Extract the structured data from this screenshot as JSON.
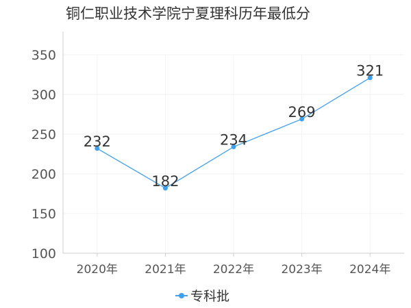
{
  "chart_data": {
    "type": "line",
    "title": "铜仁职业技术学院宁夏理科历年最低分",
    "categories": [
      "2020年",
      "2021年",
      "2022年",
      "2023年",
      "2024年"
    ],
    "series": [
      {
        "name": "专科批",
        "values": [
          232,
          182,
          234,
          269,
          321
        ],
        "color": "#3fa0ee"
      }
    ],
    "ylim": [
      100,
      350
    ],
    "yticks": [
      100,
      150,
      200,
      250,
      300,
      350
    ],
    "xlabel": "",
    "ylabel": "",
    "grid": true,
    "legend": "bottom-center",
    "data_labels": true
  }
}
